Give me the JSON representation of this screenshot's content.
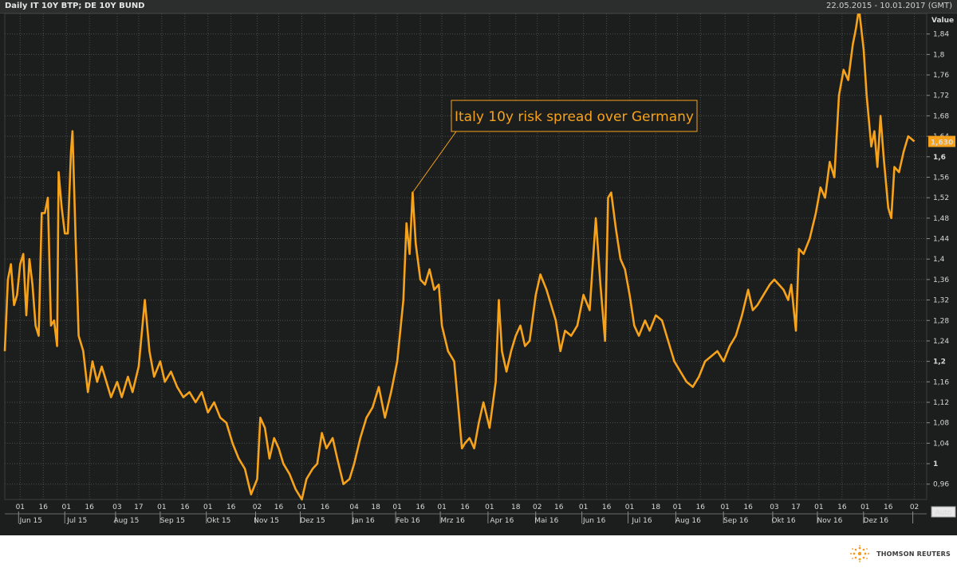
{
  "header": {
    "title": "Daily IT 10Y BTP; DE 10Y BUND",
    "date_range": "22.05.2015 - 10.01.2017 (GMT)"
  },
  "colors": {
    "background": "#1b1e1d",
    "series": "#f7a21b",
    "grid": "#4a4d4c",
    "value_label_bg": "#f7a21b"
  },
  "icons": {
    "brand": "thomson-reuters-logo-icon"
  },
  "footer": {
    "brand": "THOMSON REUTERS"
  },
  "chart_data": {
    "type": "line",
    "title": "Daily IT 10Y BTP; DE 10Y BUND",
    "ylabel": "Value",
    "ylim": [
      0.93,
      1.88
    ],
    "y_ticks": [
      0.96,
      1.0,
      1.04,
      1.08,
      1.12,
      1.16,
      1.2,
      1.24,
      1.28,
      1.32,
      1.36,
      1.4,
      1.44,
      1.48,
      1.52,
      1.56,
      1.6,
      1.64,
      1.68,
      1.72,
      1.76,
      1.8,
      1.84
    ],
    "y_tick_labels": [
      "0,96",
      "1",
      "1,04",
      "1,08",
      "1,12",
      "1,16",
      "1,2",
      "1,24",
      "1,28",
      "1,32",
      "1,36",
      "1,4",
      "1,44",
      "1,48",
      "1,52",
      "1,56",
      "1,6",
      "1,64",
      "1,68",
      "1,72",
      "1,76",
      "1,8",
      "1,84"
    ],
    "y_bold_ticks": [
      "1",
      "1,2",
      "1,6"
    ],
    "x_range": [
      "2015-05-22",
      "2017-01-10"
    ],
    "day_ticks": [
      {
        "date": "2015-06-01",
        "label": "01"
      },
      {
        "date": "2015-06-16",
        "label": "16"
      },
      {
        "date": "2015-07-01",
        "label": "01"
      },
      {
        "date": "2015-07-16",
        "label": "16"
      },
      {
        "date": "2015-08-03",
        "label": "03"
      },
      {
        "date": "2015-08-17",
        "label": "17"
      },
      {
        "date": "2015-09-01",
        "label": "01"
      },
      {
        "date": "2015-09-16",
        "label": "16"
      },
      {
        "date": "2015-10-01",
        "label": "01"
      },
      {
        "date": "2015-10-16",
        "label": "16"
      },
      {
        "date": "2015-11-02",
        "label": "02"
      },
      {
        "date": "2015-11-16",
        "label": "16"
      },
      {
        "date": "2015-12-01",
        "label": "01"
      },
      {
        "date": "2015-12-16",
        "label": "16"
      },
      {
        "date": "2016-01-04",
        "label": "04"
      },
      {
        "date": "2016-01-18",
        "label": "18"
      },
      {
        "date": "2016-02-01",
        "label": "01"
      },
      {
        "date": "2016-02-16",
        "label": "16"
      },
      {
        "date": "2016-03-01",
        "label": "01"
      },
      {
        "date": "2016-03-16",
        "label": "16"
      },
      {
        "date": "2016-04-01",
        "label": "01"
      },
      {
        "date": "2016-04-18",
        "label": "18"
      },
      {
        "date": "2016-05-02",
        "label": "02"
      },
      {
        "date": "2016-05-16",
        "label": "16"
      },
      {
        "date": "2016-06-01",
        "label": "01"
      },
      {
        "date": "2016-06-16",
        "label": "16"
      },
      {
        "date": "2016-07-01",
        "label": "01"
      },
      {
        "date": "2016-07-18",
        "label": "18"
      },
      {
        "date": "2016-08-01",
        "label": "01"
      },
      {
        "date": "2016-08-16",
        "label": "16"
      },
      {
        "date": "2016-09-01",
        "label": "01"
      },
      {
        "date": "2016-09-16",
        "label": "16"
      },
      {
        "date": "2016-10-03",
        "label": "03"
      },
      {
        "date": "2016-10-17",
        "label": "17"
      },
      {
        "date": "2016-11-01",
        "label": "01"
      },
      {
        "date": "2016-11-16",
        "label": "16"
      },
      {
        "date": "2016-12-01",
        "label": "01"
      },
      {
        "date": "2016-12-16",
        "label": "16"
      },
      {
        "date": "2017-01-02",
        "label": "02"
      }
    ],
    "month_labels": [
      {
        "date": "2015-06-08",
        "label": "Jun 15"
      },
      {
        "date": "2015-07-08",
        "label": "Jul 15"
      },
      {
        "date": "2015-08-09",
        "label": "Aug 15"
      },
      {
        "date": "2015-09-08",
        "label": "Sep 15"
      },
      {
        "date": "2015-10-08",
        "label": "Okt 15"
      },
      {
        "date": "2015-11-08",
        "label": "Nov 15"
      },
      {
        "date": "2015-12-08",
        "label": "Dez 15"
      },
      {
        "date": "2016-01-10",
        "label": "Jan 16"
      },
      {
        "date": "2016-02-08",
        "label": "Feb 16"
      },
      {
        "date": "2016-03-08",
        "label": "Mrz 16"
      },
      {
        "date": "2016-04-09",
        "label": "Apr 16"
      },
      {
        "date": "2016-05-08",
        "label": "Mai 16"
      },
      {
        "date": "2016-06-08",
        "label": "Jun 16"
      },
      {
        "date": "2016-07-09",
        "label": "Jul 16"
      },
      {
        "date": "2016-08-08",
        "label": "Aug 16"
      },
      {
        "date": "2016-09-08",
        "label": "Sep 16"
      },
      {
        "date": "2016-10-09",
        "label": "Okt 16"
      },
      {
        "date": "2016-11-08",
        "label": "Nov 16"
      },
      {
        "date": "2016-12-08",
        "label": "Dez 16"
      }
    ],
    "last_value": "1,630",
    "auto_label": "Auto",
    "annotation": {
      "text": "Italy 10y risk spread over Germany",
      "point": {
        "date": "2016-02-11",
        "value": 1.53
      }
    },
    "series": [
      {
        "color": "#f7a21b",
        "points": [
          [
            "2015-05-22",
            1.22
          ],
          [
            "2015-05-24",
            1.36
          ],
          [
            "2015-05-26",
            1.39
          ],
          [
            "2015-05-28",
            1.31
          ],
          [
            "2015-05-30",
            1.33
          ],
          [
            "2015-06-01",
            1.39
          ],
          [
            "2015-06-03",
            1.41
          ],
          [
            "2015-06-05",
            1.29
          ],
          [
            "2015-06-07",
            1.4
          ],
          [
            "2015-06-09",
            1.35
          ],
          [
            "2015-06-11",
            1.27
          ],
          [
            "2015-06-13",
            1.25
          ],
          [
            "2015-06-15",
            1.49
          ],
          [
            "2015-06-17",
            1.49
          ],
          [
            "2015-06-19",
            1.52
          ],
          [
            "2015-06-21",
            1.27
          ],
          [
            "2015-06-23",
            1.28
          ],
          [
            "2015-06-25",
            1.23
          ],
          [
            "2015-06-26",
            1.57
          ],
          [
            "2015-06-28",
            1.5
          ],
          [
            "2015-06-30",
            1.45
          ],
          [
            "2015-07-02",
            1.45
          ],
          [
            "2015-07-04",
            1.61
          ],
          [
            "2015-07-05",
            1.65
          ],
          [
            "2015-07-07",
            1.44
          ],
          [
            "2015-07-09",
            1.25
          ],
          [
            "2015-07-12",
            1.22
          ],
          [
            "2015-07-15",
            1.14
          ],
          [
            "2015-07-18",
            1.2
          ],
          [
            "2015-07-21",
            1.16
          ],
          [
            "2015-07-24",
            1.19
          ],
          [
            "2015-07-27",
            1.16
          ],
          [
            "2015-07-30",
            1.13
          ],
          [
            "2015-08-03",
            1.16
          ],
          [
            "2015-08-06",
            1.13
          ],
          [
            "2015-08-10",
            1.17
          ],
          [
            "2015-08-13",
            1.14
          ],
          [
            "2015-08-17",
            1.19
          ],
          [
            "2015-08-21",
            1.32
          ],
          [
            "2015-08-24",
            1.22
          ],
          [
            "2015-08-27",
            1.17
          ],
          [
            "2015-08-31",
            1.2
          ],
          [
            "2015-09-03",
            1.16
          ],
          [
            "2015-09-07",
            1.18
          ],
          [
            "2015-09-11",
            1.15
          ],
          [
            "2015-09-15",
            1.13
          ],
          [
            "2015-09-19",
            1.14
          ],
          [
            "2015-09-23",
            1.12
          ],
          [
            "2015-09-27",
            1.14
          ],
          [
            "2015-10-01",
            1.1
          ],
          [
            "2015-10-05",
            1.12
          ],
          [
            "2015-10-09",
            1.09
          ],
          [
            "2015-10-13",
            1.08
          ],
          [
            "2015-10-17",
            1.04
          ],
          [
            "2015-10-21",
            1.01
          ],
          [
            "2015-10-25",
            0.99
          ],
          [
            "2015-10-29",
            0.94
          ],
          [
            "2015-11-02",
            0.97
          ],
          [
            "2015-11-04",
            1.09
          ],
          [
            "2015-11-07",
            1.07
          ],
          [
            "2015-11-10",
            1.01
          ],
          [
            "2015-11-13",
            1.05
          ],
          [
            "2015-11-16",
            1.03
          ],
          [
            "2015-11-19",
            1.0
          ],
          [
            "2015-11-23",
            0.98
          ],
          [
            "2015-11-27",
            0.95
          ],
          [
            "2015-12-01",
            0.93
          ],
          [
            "2015-12-04",
            0.97
          ],
          [
            "2015-12-08",
            0.99
          ],
          [
            "2015-12-11",
            1.0
          ],
          [
            "2015-12-14",
            1.06
          ],
          [
            "2015-12-17",
            1.03
          ],
          [
            "2015-12-21",
            1.05
          ],
          [
            "2015-12-24",
            1.01
          ],
          [
            "2015-12-28",
            0.96
          ],
          [
            "2016-01-01",
            0.97
          ],
          [
            "2016-01-04",
            1.0
          ],
          [
            "2016-01-08",
            1.05
          ],
          [
            "2016-01-12",
            1.09
          ],
          [
            "2016-01-16",
            1.11
          ],
          [
            "2016-01-20",
            1.15
          ],
          [
            "2016-01-24",
            1.09
          ],
          [
            "2016-01-28",
            1.14
          ],
          [
            "2016-02-01",
            1.2
          ],
          [
            "2016-02-05",
            1.32
          ],
          [
            "2016-02-07",
            1.47
          ],
          [
            "2016-02-09",
            1.41
          ],
          [
            "2016-02-11",
            1.53
          ],
          [
            "2016-02-13",
            1.43
          ],
          [
            "2016-02-16",
            1.36
          ],
          [
            "2016-02-19",
            1.35
          ],
          [
            "2016-02-22",
            1.38
          ],
          [
            "2016-02-25",
            1.34
          ],
          [
            "2016-02-28",
            1.35
          ],
          [
            "2016-03-01",
            1.27
          ],
          [
            "2016-03-05",
            1.22
          ],
          [
            "2016-03-09",
            1.2
          ],
          [
            "2016-03-12",
            1.1
          ],
          [
            "2016-03-14",
            1.03
          ],
          [
            "2016-03-16",
            1.04
          ],
          [
            "2016-03-19",
            1.05
          ],
          [
            "2016-03-22",
            1.03
          ],
          [
            "2016-03-25",
            1.08
          ],
          [
            "2016-03-28",
            1.12
          ],
          [
            "2016-04-01",
            1.07
          ],
          [
            "2016-04-05",
            1.16
          ],
          [
            "2016-04-07",
            1.32
          ],
          [
            "2016-04-09",
            1.22
          ],
          [
            "2016-04-12",
            1.18
          ],
          [
            "2016-04-15",
            1.22
          ],
          [
            "2016-04-18",
            1.25
          ],
          [
            "2016-04-21",
            1.27
          ],
          [
            "2016-04-24",
            1.23
          ],
          [
            "2016-04-27",
            1.24
          ],
          [
            "2016-05-01",
            1.33
          ],
          [
            "2016-05-04",
            1.37
          ],
          [
            "2016-05-08",
            1.34
          ],
          [
            "2016-05-11",
            1.31
          ],
          [
            "2016-05-14",
            1.28
          ],
          [
            "2016-05-17",
            1.22
          ],
          [
            "2016-05-20",
            1.26
          ],
          [
            "2016-05-24",
            1.25
          ],
          [
            "2016-05-28",
            1.27
          ],
          [
            "2016-06-01",
            1.33
          ],
          [
            "2016-06-05",
            1.3
          ],
          [
            "2016-06-09",
            1.48
          ],
          [
            "2016-06-12",
            1.35
          ],
          [
            "2016-06-15",
            1.24
          ],
          [
            "2016-06-17",
            1.52
          ],
          [
            "2016-06-19",
            1.53
          ],
          [
            "2016-06-22",
            1.46
          ],
          [
            "2016-06-25",
            1.4
          ],
          [
            "2016-06-28",
            1.38
          ],
          [
            "2016-07-01",
            1.33
          ],
          [
            "2016-07-04",
            1.27
          ],
          [
            "2016-07-07",
            1.25
          ],
          [
            "2016-07-11",
            1.28
          ],
          [
            "2016-07-14",
            1.26
          ],
          [
            "2016-07-18",
            1.29
          ],
          [
            "2016-07-22",
            1.28
          ],
          [
            "2016-07-26",
            1.24
          ],
          [
            "2016-07-30",
            1.2
          ],
          [
            "2016-08-03",
            1.18
          ],
          [
            "2016-08-07",
            1.16
          ],
          [
            "2016-08-11",
            1.15
          ],
          [
            "2016-08-15",
            1.17
          ],
          [
            "2016-08-19",
            1.2
          ],
          [
            "2016-08-23",
            1.21
          ],
          [
            "2016-08-27",
            1.22
          ],
          [
            "2016-08-31",
            1.2
          ],
          [
            "2016-09-04",
            1.23
          ],
          [
            "2016-09-08",
            1.25
          ],
          [
            "2016-09-12",
            1.29
          ],
          [
            "2016-09-16",
            1.34
          ],
          [
            "2016-09-19",
            1.3
          ],
          [
            "2016-09-22",
            1.31
          ],
          [
            "2016-09-26",
            1.33
          ],
          [
            "2016-09-30",
            1.35
          ],
          [
            "2016-10-03",
            1.36
          ],
          [
            "2016-10-06",
            1.35
          ],
          [
            "2016-10-09",
            1.34
          ],
          [
            "2016-10-12",
            1.32
          ],
          [
            "2016-10-14",
            1.35
          ],
          [
            "2016-10-17",
            1.26
          ],
          [
            "2016-10-19",
            1.42
          ],
          [
            "2016-10-22",
            1.41
          ],
          [
            "2016-10-26",
            1.44
          ],
          [
            "2016-10-30",
            1.49
          ],
          [
            "2016-11-02",
            1.54
          ],
          [
            "2016-11-05",
            1.52
          ],
          [
            "2016-11-08",
            1.59
          ],
          [
            "2016-11-11",
            1.56
          ],
          [
            "2016-11-14",
            1.72
          ],
          [
            "2016-11-17",
            1.77
          ],
          [
            "2016-11-20",
            1.75
          ],
          [
            "2016-11-23",
            1.82
          ],
          [
            "2016-11-25",
            1.85
          ],
          [
            "2016-11-27",
            1.89
          ],
          [
            "2016-11-30",
            1.81
          ],
          [
            "2016-12-02",
            1.72
          ],
          [
            "2016-12-05",
            1.62
          ],
          [
            "2016-12-07",
            1.65
          ],
          [
            "2016-12-09",
            1.58
          ],
          [
            "2016-12-11",
            1.68
          ],
          [
            "2016-12-13",
            1.6
          ],
          [
            "2016-12-16",
            1.5
          ],
          [
            "2016-12-18",
            1.48
          ],
          [
            "2016-12-20",
            1.58
          ],
          [
            "2016-12-23",
            1.57
          ],
          [
            "2016-12-26",
            1.61
          ],
          [
            "2016-12-29",
            1.64
          ],
          [
            "2017-01-02",
            1.63
          ]
        ]
      }
    ]
  }
}
